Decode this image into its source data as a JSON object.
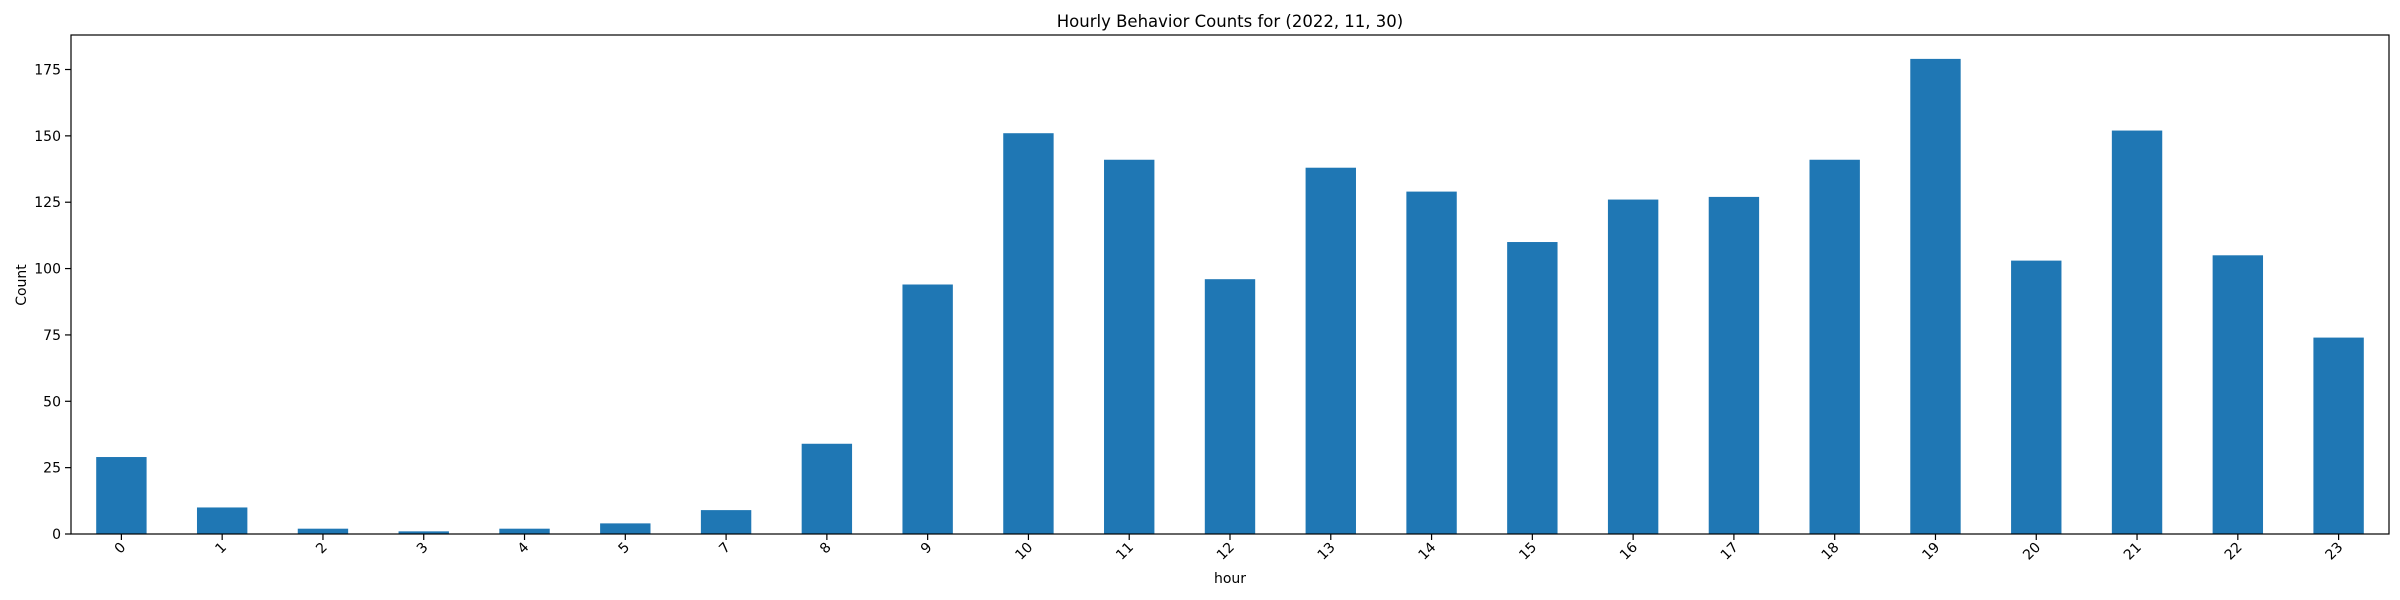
{
  "chart_data": {
    "type": "bar",
    "title": "Hourly Behavior Counts for (2022, 11, 30)",
    "xlabel": "hour",
    "ylabel": "Count",
    "categories": [
      "0",
      "1",
      "2",
      "3",
      "4",
      "5",
      "7",
      "8",
      "9",
      "10",
      "11",
      "12",
      "13",
      "14",
      "15",
      "16",
      "17",
      "18",
      "19",
      "20",
      "21",
      "22",
      "23"
    ],
    "values": [
      29,
      10,
      2,
      1,
      2,
      4,
      9,
      34,
      94,
      151,
      141,
      96,
      138,
      129,
      110,
      126,
      127,
      141,
      179,
      103,
      152,
      105,
      74
    ],
    "ylim": [
      0,
      188
    ],
    "yticks": [
      0,
      25,
      50,
      75,
      100,
      125,
      150,
      175
    ],
    "ytick_labels": [
      "0",
      "25",
      "50",
      "75",
      "100",
      "125",
      "150",
      "175"
    ],
    "xtick_rotation": 45,
    "grid": false,
    "legend": false,
    "bar_color": "#1f77b4"
  }
}
